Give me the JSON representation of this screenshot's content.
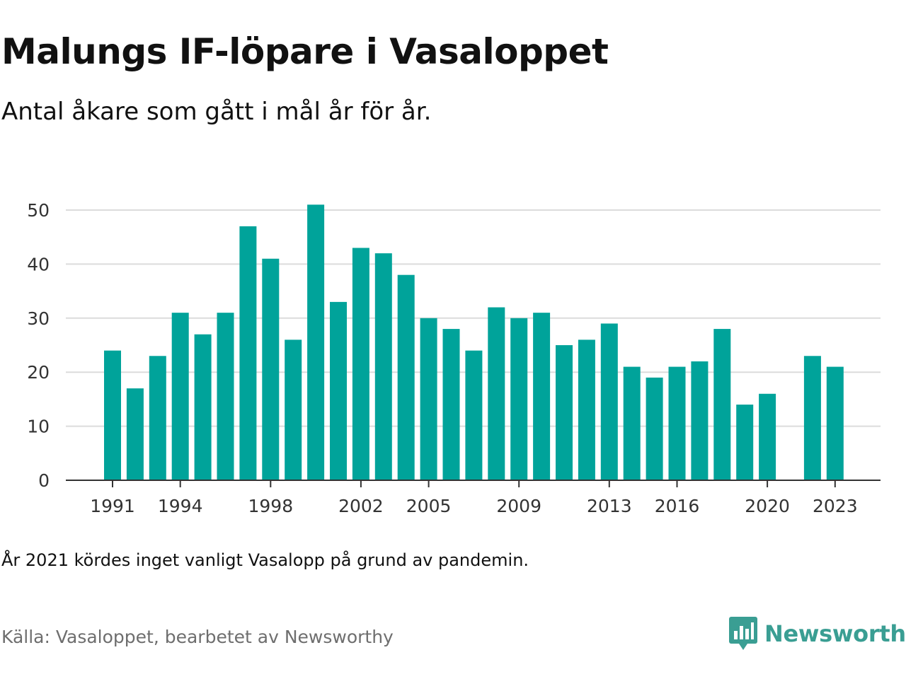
{
  "title": "Malungs IF-löpare i Vasaloppet",
  "subtitle": "Antal åkare som gått i mål år för år.",
  "note": "År 2021 kördes inget vanligt Vasalopp på grund av pandemin.",
  "source": "Källa: Vasaloppet, bearbetet av Newsworthy",
  "brand": {
    "name": "Newsworthy",
    "icon": "newsworthy-logo-icon"
  },
  "colors": {
    "bar": "#00a39a",
    "brand": "#3a9e93",
    "grid": "#dcdcdc",
    "axis": "#333333"
  },
  "chart_data": {
    "type": "bar",
    "title": "Malungs IF-löpare i Vasaloppet",
    "xlabel": "",
    "ylabel": "",
    "categories": [
      1991,
      1992,
      1993,
      1994,
      1995,
      1996,
      1997,
      1998,
      1999,
      2000,
      2001,
      2002,
      2003,
      2004,
      2005,
      2006,
      2007,
      2008,
      2009,
      2010,
      2011,
      2012,
      2013,
      2014,
      2015,
      2016,
      2017,
      2018,
      2019,
      2020,
      2021,
      2022,
      2023
    ],
    "values": [
      24,
      17,
      23,
      31,
      27,
      31,
      47,
      41,
      26,
      51,
      33,
      43,
      42,
      38,
      30,
      28,
      24,
      32,
      30,
      31,
      25,
      26,
      29,
      21,
      19,
      21,
      22,
      28,
      14,
      16,
      null,
      23,
      21
    ],
    "x_tick_labels": [
      "1991",
      "1994",
      "1998",
      "2002",
      "2005",
      "2009",
      "2013",
      "2016",
      "2020",
      "2023"
    ],
    "y_ticks": [
      0,
      10,
      20,
      30,
      40,
      50
    ],
    "ylim": [
      0,
      51
    ],
    "grid": true,
    "legend": "none"
  }
}
